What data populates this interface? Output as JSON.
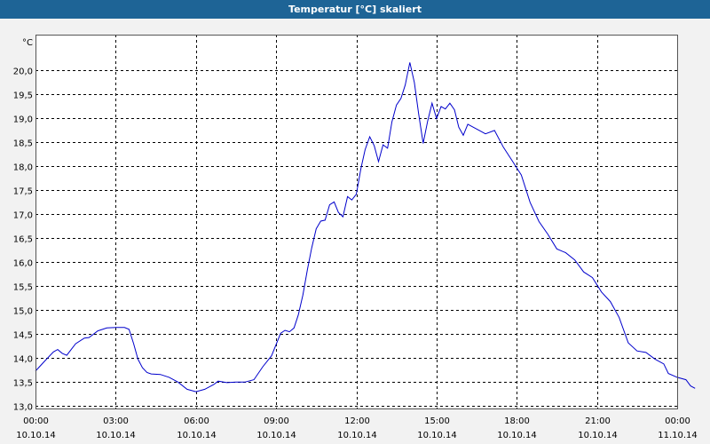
{
  "window": {
    "title": "Temperatur [°C] skaliert"
  },
  "colors": {
    "title_bar": "#1e6496",
    "line": "#0000cc",
    "plot_background": "#ffffff",
    "grid": "#000000"
  },
  "chart_data": {
    "type": "line",
    "title": "Temperatur [°C] skaliert",
    "ylabel": "°C",
    "xlabel": "",
    "grid": true,
    "grid_style": "dashed",
    "ylim": [
      12.95,
      20.75
    ],
    "xlim": [
      0,
      24
    ],
    "y_ticks": [
      "13,0",
      "13,5",
      "14,0",
      "14,5",
      "15,0",
      "15,5",
      "16,0",
      "16,5",
      "17,0",
      "17,5",
      "18,0",
      "18,5",
      "19,0",
      "19,5",
      "20,0"
    ],
    "y_tick_values": [
      13.0,
      13.5,
      14.0,
      14.5,
      15.0,
      15.5,
      16.0,
      16.5,
      17.0,
      17.5,
      18.0,
      18.5,
      19.0,
      19.5,
      20.0
    ],
    "x_ticks": [
      {
        "hour": 0,
        "time": "00:00",
        "date": "10.10.14"
      },
      {
        "hour": 3,
        "time": "03:00",
        "date": "10.10.14"
      },
      {
        "hour": 6,
        "time": "06:00",
        "date": "10.10.14"
      },
      {
        "hour": 9,
        "time": "09:00",
        "date": "10.10.14"
      },
      {
        "hour": 12,
        "time": "12:00",
        "date": "10.10.14"
      },
      {
        "hour": 15,
        "time": "15:00",
        "date": "10.10.14"
      },
      {
        "hour": 18,
        "time": "18:00",
        "date": "10.10.14"
      },
      {
        "hour": 21,
        "time": "21:00",
        "date": "10.10.14"
      },
      {
        "hour": 24,
        "time": "00:00",
        "date": "11.10.14"
      }
    ],
    "series": [
      {
        "points": [
          [
            0.0,
            13.73
          ],
          [
            0.33,
            13.93
          ],
          [
            0.67,
            14.13
          ],
          [
            0.83,
            14.18
          ],
          [
            1.0,
            14.1
          ],
          [
            1.17,
            14.06
          ],
          [
            1.5,
            14.3
          ],
          [
            1.83,
            14.42
          ],
          [
            2.0,
            14.43
          ],
          [
            2.33,
            14.57
          ],
          [
            2.67,
            14.63
          ],
          [
            3.0,
            14.64
          ],
          [
            3.33,
            14.64
          ],
          [
            3.5,
            14.6
          ],
          [
            3.67,
            14.3
          ],
          [
            3.83,
            13.98
          ],
          [
            4.0,
            13.8
          ],
          [
            4.17,
            13.7
          ],
          [
            4.33,
            13.67
          ],
          [
            4.67,
            13.66
          ],
          [
            5.0,
            13.6
          ],
          [
            5.33,
            13.5
          ],
          [
            5.67,
            13.35
          ],
          [
            6.0,
            13.3
          ],
          [
            6.33,
            13.35
          ],
          [
            6.67,
            13.45
          ],
          [
            6.83,
            13.52
          ],
          [
            7.17,
            13.49
          ],
          [
            7.5,
            13.5
          ],
          [
            7.83,
            13.5
          ],
          [
            8.17,
            13.55
          ],
          [
            8.5,
            13.82
          ],
          [
            8.83,
            14.05
          ],
          [
            9.17,
            14.52
          ],
          [
            9.33,
            14.58
          ],
          [
            9.5,
            14.55
          ],
          [
            9.67,
            14.63
          ],
          [
            9.83,
            14.9
          ],
          [
            10.0,
            15.32
          ],
          [
            10.17,
            15.85
          ],
          [
            10.33,
            16.3
          ],
          [
            10.5,
            16.7
          ],
          [
            10.67,
            16.86
          ],
          [
            10.83,
            16.88
          ],
          [
            11.0,
            17.2
          ],
          [
            11.17,
            17.26
          ],
          [
            11.33,
            17.04
          ],
          [
            11.5,
            16.95
          ],
          [
            11.67,
            17.37
          ],
          [
            11.83,
            17.3
          ],
          [
            12.0,
            17.42
          ],
          [
            12.17,
            17.95
          ],
          [
            12.33,
            18.35
          ],
          [
            12.5,
            18.62
          ],
          [
            12.67,
            18.43
          ],
          [
            12.83,
            18.1
          ],
          [
            13.0,
            18.45
          ],
          [
            13.17,
            18.38
          ],
          [
            13.33,
            18.93
          ],
          [
            13.5,
            19.28
          ],
          [
            13.67,
            19.42
          ],
          [
            13.83,
            19.7
          ],
          [
            14.0,
            20.17
          ],
          [
            14.17,
            19.75
          ],
          [
            14.33,
            19.1
          ],
          [
            14.5,
            18.48
          ],
          [
            14.67,
            18.95
          ],
          [
            14.83,
            19.32
          ],
          [
            15.0,
            19.0
          ],
          [
            15.17,
            19.25
          ],
          [
            15.33,
            19.2
          ],
          [
            15.5,
            19.32
          ],
          [
            15.67,
            19.18
          ],
          [
            15.83,
            18.82
          ],
          [
            16.0,
            18.65
          ],
          [
            16.17,
            18.88
          ],
          [
            16.5,
            18.78
          ],
          [
            16.83,
            18.68
          ],
          [
            17.17,
            18.75
          ],
          [
            17.5,
            18.4
          ],
          [
            17.83,
            18.12
          ],
          [
            18.17,
            17.82
          ],
          [
            18.5,
            17.25
          ],
          [
            18.83,
            16.85
          ],
          [
            19.17,
            16.58
          ],
          [
            19.5,
            16.28
          ],
          [
            19.83,
            16.2
          ],
          [
            20.17,
            16.05
          ],
          [
            20.5,
            15.8
          ],
          [
            20.83,
            15.68
          ],
          [
            21.17,
            15.38
          ],
          [
            21.5,
            15.18
          ],
          [
            21.83,
            14.85
          ],
          [
            22.17,
            14.32
          ],
          [
            22.5,
            14.15
          ],
          [
            22.83,
            14.12
          ],
          [
            23.17,
            13.98
          ],
          [
            23.5,
            13.88
          ],
          [
            23.67,
            13.68
          ],
          [
            24.0,
            13.6
          ],
          [
            24.33,
            13.55
          ],
          [
            24.5,
            13.42
          ],
          [
            24.67,
            13.37
          ]
        ]
      }
    ]
  }
}
